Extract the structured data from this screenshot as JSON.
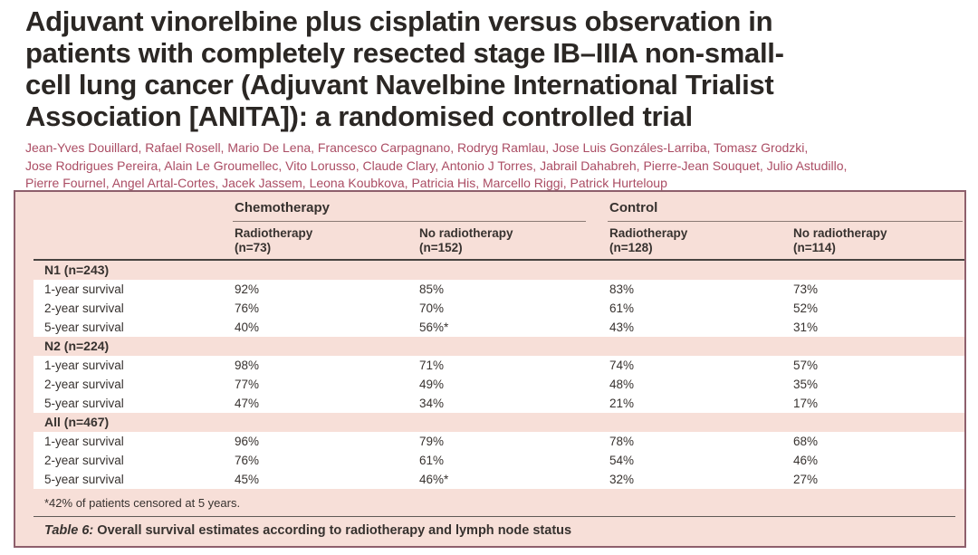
{
  "article": {
    "title": "Adjuvant vinorelbine plus cisplatin versus observation in\npatients with completely resected stage IB–IIIA non-small-\ncell lung cancer (Adjuvant Navelbine International Trialist\nAssociation [ANITA]): a randomised controlled trial",
    "authors": "Jean-Yves Douillard, Rafael Rosell, Mario De Lena, Francesco Carpagnano, Rodryg Ramlau, Jose Luis Gonzáles-Larriba, Tomasz Grodzki,\nJose Rodrigues Pereira, Alain Le Groumellec, Vito Lorusso, Claude Clary, Antonio J Torres, Jabrail Dahabreh, Pierre-Jean Souquet, Julio Astudillo,\nPierre Fournel, Angel Artal-Cortes, Jacek Jassem, Leona Koubkova, Patricia His, Marcello Riggi, Patrick Hurteloup"
  },
  "table": {
    "group_headers": {
      "chemotherapy": "Chemotherapy",
      "control": "Control"
    },
    "column_headers": [
      "Radiotherapy\n(n=73)",
      "No radiotherapy\n(n=152)",
      "Radiotherapy\n(n=128)",
      "No radiotherapy\n(n=114)"
    ],
    "sections": [
      {
        "label": "N1 (n=243)",
        "rows": [
          {
            "label": "1-year survival",
            "values": [
              "92%",
              "85%",
              "83%",
              "73%"
            ]
          },
          {
            "label": "2-year survival",
            "values": [
              "76%",
              "70%",
              "61%",
              "52%"
            ]
          },
          {
            "label": "5-year survival",
            "values": [
              "40%",
              "56%*",
              "43%",
              "31%"
            ]
          }
        ]
      },
      {
        "label": "N2 (n=224)",
        "rows": [
          {
            "label": "1-year survival",
            "values": [
              "98%",
              "71%",
              "74%",
              "57%"
            ]
          },
          {
            "label": "2-year survival",
            "values": [
              "77%",
              "49%",
              "48%",
              "35%"
            ]
          },
          {
            "label": "5-year survival",
            "values": [
              "47%",
              "34%",
              "21%",
              "17%"
            ]
          }
        ]
      },
      {
        "label": "All (n=467)",
        "rows": [
          {
            "label": "1-year survival",
            "values": [
              "96%",
              "79%",
              "78%",
              "68%"
            ]
          },
          {
            "label": "2-year survival",
            "values": [
              "76%",
              "61%",
              "54%",
              "46%"
            ]
          },
          {
            "label": "5-year survival",
            "values": [
              "45%",
              "46%*",
              "32%",
              "27%"
            ]
          }
        ]
      }
    ],
    "footnote": "*42% of patients censored at 5 years.",
    "caption": {
      "label": "Table 6:",
      "text": "Overall survival estimates according to radiotherapy and lymph node status"
    }
  },
  "colors": {
    "table_background": "#f7dfd8",
    "table_border": "#8e5f6c",
    "author_text": "#ab4d64",
    "body_text": "#37322f",
    "title_text": "#2b2724"
  }
}
